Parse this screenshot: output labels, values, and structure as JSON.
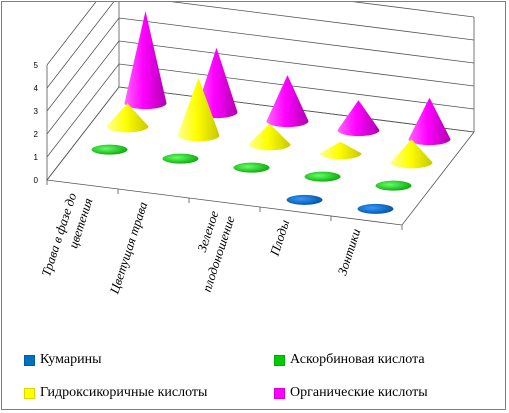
{
  "chart_data": {
    "type": "3d-cone",
    "categories": [
      [
        "Трава в фазе до",
        "цветения"
      ],
      [
        "Цветущая трава"
      ],
      [
        "Зеленое",
        "плодоношение"
      ],
      [
        "Плоды"
      ],
      [
        "Зонтики"
      ]
    ],
    "yticks": [
      "0",
      "1",
      "2",
      "3",
      "4",
      "5"
    ],
    "ylim": [
      0,
      5
    ],
    "grid": true,
    "legend_position": "bottom",
    "series": [
      {
        "name": "Кумарины",
        "color": "#0070c0",
        "values": [
          0,
          0,
          0,
          0.15,
          0.15
        ]
      },
      {
        "name": "Аскорбиновая кислота",
        "color": "#00cc00",
        "values": [
          0.05,
          0.05,
          0.05,
          0.05,
          0.05
        ]
      },
      {
        "name": "Гидроксикоричные кислоты",
        "color": "#ffff00",
        "values": [
          1.0,
          2.5,
          0.9,
          0.5,
          1.0
        ]
      },
      {
        "name": "Органические кислоты",
        "color": "#ff00ff",
        "values": [
          4.0,
          2.8,
          2.0,
          1.3,
          1.8
        ]
      }
    ]
  },
  "legend": {
    "items": [
      {
        "label": "Кумарины",
        "color": "#0070c0"
      },
      {
        "label": "Аскорбиновая кислота",
        "color": "#00cc00"
      },
      {
        "label": "Гидроксикоричные кислоты",
        "color": "#ffff00"
      },
      {
        "label": "Органические кислоты",
        "color": "#ff00ff"
      }
    ]
  }
}
